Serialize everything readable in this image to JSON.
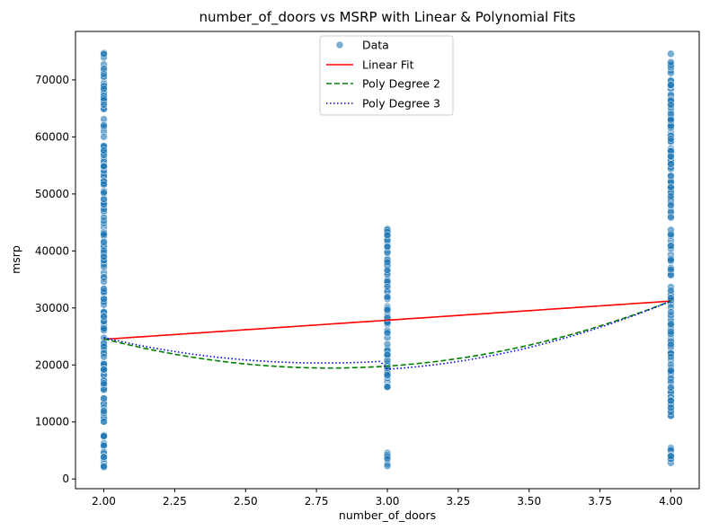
{
  "chart_data": {
    "type": "scatter",
    "title": "number_of_doors vs MSRP with Linear & Polynomial Fits",
    "xlabel": "number_of_doors",
    "ylabel": "msrp",
    "xlim": [
      1.9,
      4.1
    ],
    "ylim": [
      -1700,
      78500
    ],
    "x_ticks": [
      2.0,
      2.25,
      2.5,
      2.75,
      3.0,
      3.25,
      3.5,
      3.75,
      4.0
    ],
    "x_tick_labels": [
      "2.00",
      "2.25",
      "2.50",
      "2.75",
      "3.00",
      "3.25",
      "3.50",
      "3.75",
      "4.00"
    ],
    "y_ticks": [
      0,
      10000,
      20000,
      30000,
      40000,
      50000,
      60000,
      70000
    ],
    "y_tick_labels": [
      "0",
      "10000",
      "20000",
      "30000",
      "40000",
      "50000",
      "60000",
      "70000"
    ],
    "grid": false,
    "legend_position": "top-center",
    "colors": {
      "data": "#1f77b4",
      "linear": "#ff0000",
      "poly2": "#008000",
      "poly3": "#0000ff"
    },
    "series": [
      {
        "name": "Data",
        "kind": "scatter",
        "groups": [
          {
            "x": 2.0,
            "y_min": 2000,
            "y_max": 75000
          },
          {
            "x": 3.0,
            "y_min": 16000,
            "y_max": 44000,
            "extra_cluster": [
              2000,
              4800
            ]
          },
          {
            "x": 4.0,
            "y_min": 11000,
            "y_max": 75000,
            "extra_cluster": [
              2000,
              6000
            ]
          }
        ]
      },
      {
        "name": "Linear Fit",
        "kind": "line",
        "style": "solid",
        "x": [
          2.0,
          4.0
        ],
        "y": [
          24500,
          31200
        ]
      },
      {
        "name": "Poly Degree 2",
        "kind": "line",
        "style": "dashed",
        "x": [
          2.0,
          3.0,
          4.0
        ],
        "y": [
          24600,
          19800,
          31200
        ]
      },
      {
        "name": "Poly Degree 3",
        "kind": "line",
        "style": "dotted",
        "x": [
          2.0,
          3.0,
          4.0
        ],
        "y": [
          24800,
          19800,
          31200
        ]
      }
    ]
  }
}
